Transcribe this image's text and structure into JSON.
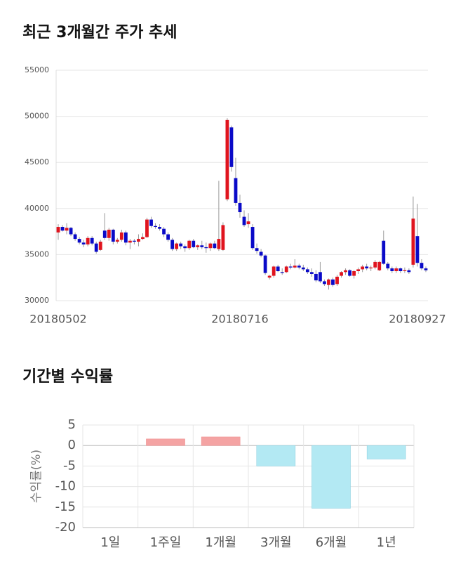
{
  "chart_data": [
    {
      "type": "candlestick",
      "title": "최근 3개월간 주가 추세",
      "categories": [
        "20180502",
        null,
        null,
        null,
        null,
        null,
        null,
        null,
        null,
        null,
        null,
        null,
        null,
        null,
        null,
        null,
        null,
        null,
        null,
        null,
        null,
        null,
        null,
        null,
        null,
        null,
        null,
        null,
        null,
        null,
        null,
        null,
        null,
        null,
        null,
        null,
        null,
        null,
        null,
        null,
        null,
        null,
        null,
        "20180716",
        null,
        null,
        null,
        null,
        null,
        null,
        null,
        null,
        null,
        null,
        null,
        null,
        null,
        null,
        null,
        null,
        null,
        null,
        null,
        null,
        null,
        null,
        null,
        null,
        null,
        null,
        null,
        null,
        null,
        null,
        null,
        null,
        null,
        null,
        null,
        null,
        null,
        null,
        null,
        null,
        null,
        "20180927",
        null,
        null
      ],
      "up_color": "#e0141e",
      "down_color": "#0a0ac8",
      "open": [
        37400,
        38000,
        37600,
        37900,
        37200,
        36700,
        36300,
        36100,
        36800,
        36200,
        35500,
        37600,
        36800,
        37700,
        36400,
        36600,
        37400,
        36300,
        36500,
        36400,
        36700,
        36900,
        38800,
        38100,
        38000,
        37800,
        37200,
        36600,
        35600,
        36200,
        35900,
        35700,
        36500,
        35800,
        36000,
        35800,
        35700,
        36200,
        35600,
        35500,
        41000,
        48800,
        43300,
        40600,
        39100,
        38300,
        38000,
        35700,
        35300,
        34900,
        32500,
        32700,
        33700,
        33100,
        33100,
        33700,
        33600,
        33800,
        33600,
        33400,
        33100,
        32900,
        33100,
        32100,
        31700,
        32300,
        31800,
        32700,
        33100,
        33300,
        32700,
        33200,
        33400,
        33700,
        33500,
        33600,
        33300,
        36500,
        34000,
        33500,
        33200,
        33500,
        33200,
        33300,
        33900,
        37000,
        34100,
        33500
      ],
      "high": [
        38300,
        38200,
        38400,
        38000,
        37400,
        36900,
        36600,
        37000,
        37000,
        36400,
        36600,
        39500,
        37900,
        37800,
        36800,
        37700,
        37600,
        36700,
        36700,
        37200,
        37300,
        39000,
        39100,
        38400,
        38300,
        38000,
        37400,
        36800,
        36300,
        36400,
        36100,
        36600,
        36700,
        36100,
        36500,
        36300,
        36300,
        36500,
        43000,
        38500,
        49800,
        49000,
        45500,
        41500,
        39800,
        39500,
        38300,
        36200,
        35600,
        35000,
        32800,
        33800,
        33900,
        33500,
        33800,
        34000,
        34500,
        34000,
        33900,
        33600,
        33500,
        33300,
        34200,
        32300,
        32400,
        32500,
        32800,
        33200,
        33500,
        33400,
        33300,
        33600,
        33900,
        34000,
        33800,
        34400,
        34300,
        37600,
        34200,
        33700,
        33700,
        33600,
        33600,
        33500,
        41300,
        40500,
        34500,
        33700
      ],
      "low": [
        36600,
        37500,
        37200,
        37000,
        36500,
        36100,
        35800,
        35900,
        36000,
        35100,
        35400,
        36600,
        36500,
        36100,
        36200,
        36400,
        36000,
        35600,
        36100,
        35900,
        36600,
        36800,
        37900,
        37800,
        37600,
        36900,
        36400,
        35400,
        35400,
        35600,
        35300,
        35500,
        35700,
        35500,
        35600,
        35200,
        35400,
        35600,
        35400,
        35400,
        40800,
        44000,
        40300,
        39000,
        38000,
        37900,
        35500,
        35100,
        34700,
        32800,
        32300,
        32500,
        33100,
        32800,
        33000,
        33400,
        33500,
        33400,
        33200,
        32900,
        32600,
        32000,
        31900,
        31600,
        31200,
        31500,
        31600,
        32500,
        32800,
        32600,
        32400,
        32900,
        33100,
        33300,
        33200,
        33400,
        33200,
        33900,
        33300,
        33000,
        33000,
        33000,
        33000,
        32900,
        33600,
        33700,
        33300,
        33100
      ],
      "close": [
        38000,
        37600,
        37900,
        37200,
        36700,
        36300,
        36100,
        36800,
        36200,
        35300,
        36400,
        36800,
        37700,
        36400,
        36600,
        37400,
        36300,
        36500,
        36400,
        36700,
        36900,
        38800,
        38100,
        38000,
        37800,
        37200,
        36600,
        35600,
        36200,
        35900,
        35700,
        36500,
        35800,
        36000,
        35800,
        35700,
        36200,
        35700,
        36700,
        38200,
        49600,
        44500,
        40600,
        39600,
        38200,
        38600,
        35700,
        35400,
        34900,
        33000,
        32700,
        33700,
        33200,
        33000,
        33700,
        33600,
        33800,
        33600,
        33400,
        33100,
        32900,
        32200,
        32100,
        31800,
        32300,
        31700,
        32600,
        33100,
        33300,
        32700,
        33200,
        33400,
        33700,
        33500,
        33600,
        34200,
        34200,
        34000,
        33500,
        33200,
        33500,
        33200,
        33300,
        33100,
        38900,
        34100,
        33500,
        33300
      ],
      "ylim": [
        30000,
        55000
      ],
      "yticks": [
        30000,
        35000,
        40000,
        45000,
        50000,
        55000
      ],
      "grid": true
    },
    {
      "type": "bar",
      "title": "기간별 수익률",
      "y_label": "수익률(%)",
      "categories": [
        "1일",
        "1주일",
        "1개월",
        "3개월",
        "6개월",
        "1년"
      ],
      "values": [
        0,
        1.6,
        2.1,
        -5.0,
        -15.3,
        -3.3
      ],
      "positive_color": "#f4a3a3",
      "negative_color": "#b3e9f3",
      "ylim": [
        -20,
        5
      ],
      "yticks": [
        -20,
        -15,
        -10,
        -5,
        0,
        5
      ],
      "grid": true
    }
  ]
}
